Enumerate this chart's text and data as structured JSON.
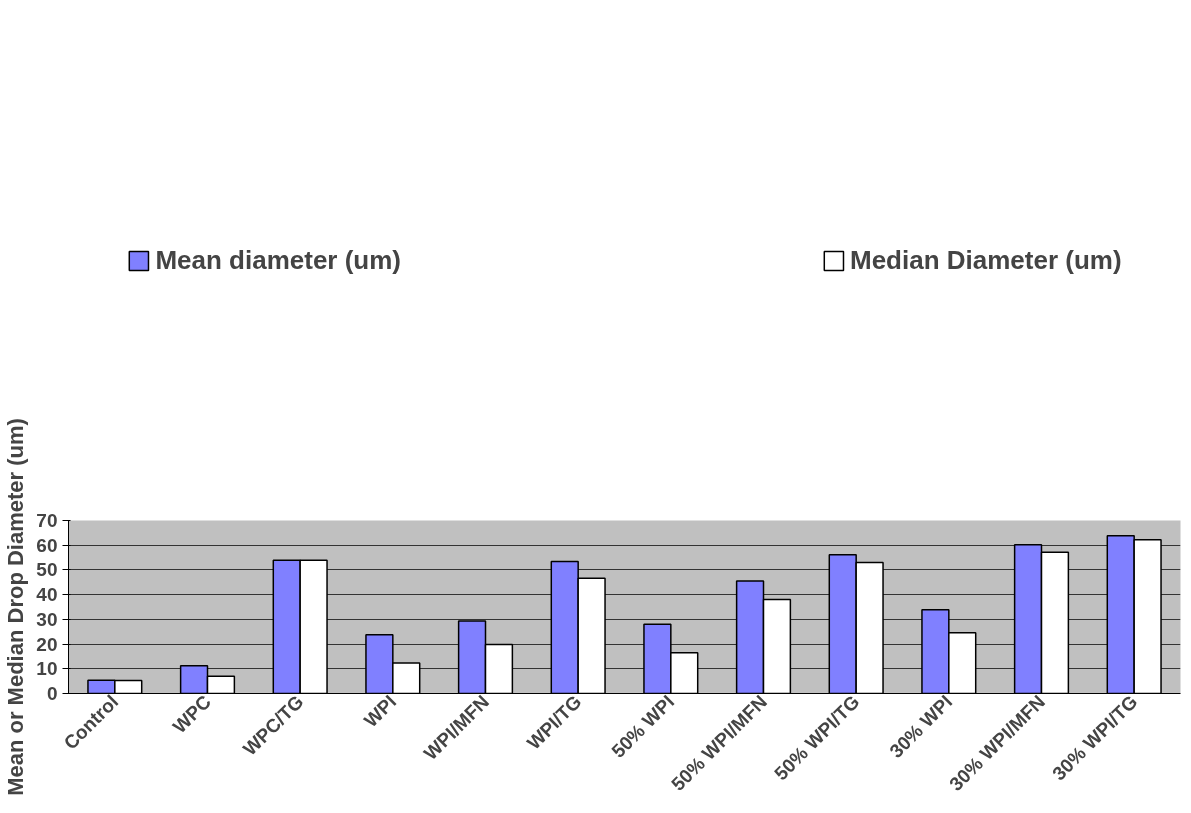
{
  "chart_data": {
    "type": "bar",
    "ylabel": "Mean or Median Drop Diameter (um)",
    "categories": [
      "Control",
      "WPC",
      "WPC/TG",
      "WPI",
      "WPI/MFN",
      "WPI/TG",
      "50% WPI",
      "50% WPI/MFN",
      "50% WPI/TG",
      "30% WPI",
      "30% WPI/MFN",
      "30% WPI/TG"
    ],
    "series": [
      {
        "name": "Mean diameter (um)",
        "color": "#8080ff",
        "values": [
          5.4,
          11.2,
          53.9,
          23.8,
          29.3,
          53.4,
          28.0,
          45.5,
          56.1,
          33.9,
          60.2,
          63.8
        ]
      },
      {
        "name": "Median Diameter (um)",
        "color": "#ffffff",
        "values": [
          5.3,
          7.0,
          53.9,
          12.3,
          19.8,
          46.6,
          16.5,
          38.0,
          53.0,
          24.6,
          57.2,
          62.2
        ]
      }
    ],
    "ylim": [
      0,
      70
    ],
    "yticks": [
      0,
      10,
      20,
      30,
      40,
      50,
      60,
      70
    ],
    "grid": "y",
    "legend": "top"
  }
}
